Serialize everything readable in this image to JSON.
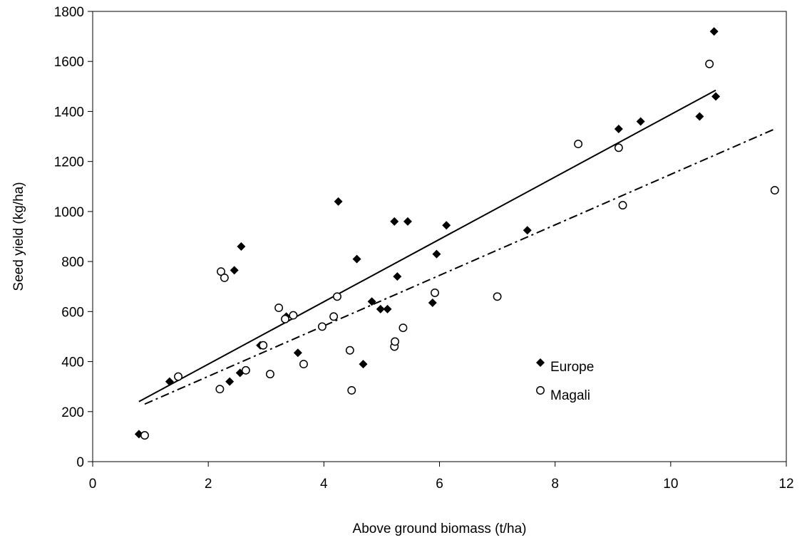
{
  "chart_data": {
    "type": "scatter",
    "title": "",
    "xlabel": "Above ground biomass (t/ha)",
    "ylabel": "Seed yield (kg/ha)",
    "xlim": [
      0,
      12
    ],
    "ylim": [
      0,
      1800
    ],
    "x_ticks": [
      "0",
      "2",
      "4",
      "6",
      "8",
      "10",
      "12"
    ],
    "y_ticks": [
      "0",
      "200",
      "400",
      "600",
      "800",
      "1000",
      "1200",
      "1400",
      "1600",
      "1800"
    ],
    "grid": false,
    "legend_position": "lower-right",
    "series": [
      {
        "name": "Europe",
        "marker": "filled-diamond",
        "color": "#000000",
        "points": [
          [
            0.8,
            110
          ],
          [
            1.33,
            320
          ],
          [
            2.37,
            320
          ],
          [
            2.45,
            765
          ],
          [
            2.55,
            355
          ],
          [
            2.57,
            860
          ],
          [
            2.9,
            465
          ],
          [
            3.35,
            580
          ],
          [
            3.55,
            435
          ],
          [
            4.25,
            1040
          ],
          [
            4.57,
            810
          ],
          [
            4.68,
            390
          ],
          [
            4.83,
            640
          ],
          [
            4.98,
            610
          ],
          [
            5.1,
            610
          ],
          [
            5.22,
            960
          ],
          [
            5.27,
            740
          ],
          [
            5.45,
            960
          ],
          [
            5.88,
            635
          ],
          [
            5.95,
            830
          ],
          [
            6.12,
            945
          ],
          [
            7.52,
            925
          ],
          [
            9.1,
            1330
          ],
          [
            9.48,
            1360
          ],
          [
            10.5,
            1380
          ],
          [
            10.75,
            1720
          ],
          [
            10.78,
            1460
          ]
        ]
      },
      {
        "name": "Magali",
        "marker": "open-circle",
        "color": "#000000",
        "points": [
          [
            0.9,
            105
          ],
          [
            1.48,
            340
          ],
          [
            2.2,
            290
          ],
          [
            2.22,
            760
          ],
          [
            2.28,
            735
          ],
          [
            2.65,
            365
          ],
          [
            2.95,
            465
          ],
          [
            3.07,
            350
          ],
          [
            3.22,
            615
          ],
          [
            3.33,
            570
          ],
          [
            3.47,
            585
          ],
          [
            3.65,
            390
          ],
          [
            3.97,
            540
          ],
          [
            4.17,
            580
          ],
          [
            4.23,
            660
          ],
          [
            4.45,
            445
          ],
          [
            4.48,
            285
          ],
          [
            5.22,
            460
          ],
          [
            5.23,
            480
          ],
          [
            5.37,
            535
          ],
          [
            5.92,
            675
          ],
          [
            7.0,
            660
          ],
          [
            8.4,
            1270
          ],
          [
            9.1,
            1255
          ],
          [
            9.17,
            1025
          ],
          [
            10.67,
            1590
          ],
          [
            11.8,
            1085
          ]
        ]
      }
    ],
    "trendlines": [
      {
        "series": "Europe",
        "style": "solid",
        "x": [
          0.8,
          10.78
        ],
        "y": [
          240,
          1485
        ]
      },
      {
        "series": "Magali",
        "style": "dash-dot",
        "x": [
          0.9,
          11.8
        ],
        "y": [
          230,
          1330
        ]
      }
    ]
  }
}
